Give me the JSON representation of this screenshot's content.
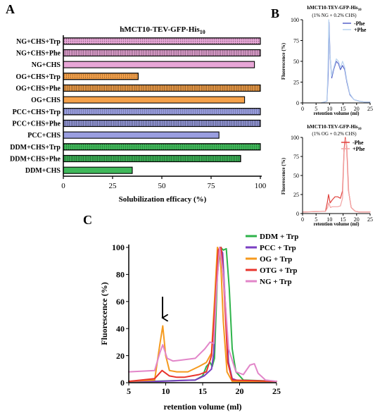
{
  "panels": {
    "A": {
      "label": "A",
      "chart_data": {
        "type": "bar",
        "orientation": "horizontal",
        "title": "hMCT10-TEV-GFP-His",
        "title_sub": "10",
        "xlabel": "Solubilization efficacy (%)",
        "ylabel": "",
        "xlim": [
          0,
          100
        ],
        "xticks": [
          "0",
          "25",
          "50",
          "75",
          "100"
        ],
        "grid": false,
        "categories": [
          "NG+CHS+Trp",
          "NG+CHS+Phe",
          "NG+CHS",
          "OG+CHS+Trp",
          "OG+CHS+Phe",
          "OG+CHS",
          "PCC+CHS+Trp",
          "PCC+CHS+Phe",
          "PCC+CHS",
          "DDM+CHS+Trp",
          "DDM+CHS+Phe",
          "DDM+CHS"
        ],
        "values": [
          100,
          100,
          97,
          38,
          100,
          92,
          100,
          100,
          79,
          100,
          90,
          35
        ],
        "colors": [
          "#e8a6d7",
          "#e8a6d7",
          "#e8a6d7",
          "#f5a14a",
          "#f5a14a",
          "#f5a14a",
          "#9a9ee0",
          "#9a9ee0",
          "#9a9ee0",
          "#3fb85a",
          "#3fb85a",
          "#3fb85a"
        ],
        "patterns": [
          "dots",
          "hatch",
          "solid",
          "dots",
          "hatch",
          "solid",
          "dots",
          "hatch",
          "solid",
          "dots",
          "hatch",
          "solid"
        ]
      }
    },
    "B": {
      "label": "B",
      "top": {
        "chart_data": {
          "type": "line",
          "title": "hMCT10-TEV-GFP-His",
          "title_sub": "10",
          "subtitle": "(1% NG + 0.2% CHS)",
          "xlabel": "retention volume (ml)",
          "ylabel": "Fluorescence (%)",
          "xlim": [
            0,
            25
          ],
          "ylim": [
            0,
            100
          ],
          "xticks": [
            "0",
            "5",
            "10",
            "15",
            "20",
            "25"
          ],
          "yticks": [
            "0",
            "25",
            "50",
            "75",
            "100"
          ],
          "legend_position": "top-right",
          "series": [
            {
              "name": "-Phe",
              "color": "#5560c8",
              "x": [
                7.0,
                9.0,
                9.5,
                9.8,
                10.2,
                10.8,
                11.5,
                12.5,
                13.3,
                14.0,
                14.8,
                15.6,
                16.4,
                17.5,
                19.0,
                21.0,
                23.0,
                25.0
              ],
              "y": [
                0,
                2,
                35,
                97,
                55,
                30,
                40,
                50,
                47,
                40,
                45,
                40,
                25,
                10,
                4,
                2,
                1,
                1
              ]
            },
            {
              "name": "+Phe",
              "color": "#b7d2ef",
              "x": [
                7.0,
                9.0,
                9.4,
                9.7,
                10.1,
                10.7,
                11.5,
                12.5,
                13.3,
                14.0,
                14.8,
                15.6,
                16.4,
                17.5,
                19.0,
                21.0,
                23.0,
                25.0
              ],
              "y": [
                0,
                2,
                40,
                100,
                60,
                32,
                42,
                53,
                50,
                42,
                50,
                43,
                27,
                11,
                4,
                2,
                1,
                1
              ]
            }
          ]
        }
      },
      "bottom": {
        "chart_data": {
          "type": "line",
          "title": "hMCT10-TEV-GFP-His",
          "title_sub": "10",
          "subtitle": "(1% OG + 0.2% CHS)",
          "xlabel": "retention volume (ml)",
          "ylabel": "Fluorescence (%)",
          "xlim": [
            0,
            25
          ],
          "ylim": [
            0,
            100
          ],
          "xticks": [
            "0",
            "5",
            "10",
            "15",
            "20",
            "25"
          ],
          "yticks": [
            "0",
            "25",
            "50",
            "75",
            "100"
          ],
          "legend_position": "top-right",
          "series": [
            {
              "name": "-Phe",
              "color": "#e0413c",
              "x": [
                0,
                8.5,
                9.2,
                9.6,
                10.2,
                11.0,
                12.0,
                13.0,
                14.0,
                14.8,
                15.4,
                15.8,
                16.3,
                17.0,
                18.0,
                19.5,
                21.0,
                25.0
              ],
              "y": [
                2,
                3,
                15,
                25,
                14,
                18,
                22,
                22,
                20,
                30,
                85,
                100,
                90,
                30,
                8,
                3,
                2,
                2
              ]
            },
            {
              "name": "+Phe",
              "color": "#f2a3a3",
              "x": [
                0,
                8.5,
                9.3,
                9.7,
                10.3,
                11.0,
                12.0,
                13.0,
                14.0,
                14.8,
                15.4,
                15.9,
                16.4,
                17.1,
                18.0,
                19.5,
                21.0,
                25.0
              ],
              "y": [
                2,
                3,
                8,
                14,
                8,
                9,
                9,
                9,
                10,
                20,
                80,
                98,
                88,
                28,
                8,
                3,
                2,
                2
              ]
            }
          ]
        }
      }
    },
    "C": {
      "label": "C",
      "chart_data": {
        "type": "line",
        "title": "",
        "xlabel": "retention volume (ml)",
        "ylabel": "Fluorescence (%)",
        "xlim": [
          5,
          25
        ],
        "ylim": [
          0,
          100
        ],
        "xticks": [
          "5",
          "10",
          "15",
          "20",
          "25"
        ],
        "yticks": [
          "0",
          "20",
          "40",
          "60",
          "80",
          "100"
        ],
        "legend_position": "top-right",
        "annotation": "arrow pointing down at ~9.5 ml",
        "series": [
          {
            "name": "DDM + Trp",
            "color": "#2db34a",
            "x": [
              5,
              8,
              14,
              15.0,
              15.5,
              16.0,
              16.3,
              16.6,
              17.0,
              17.4,
              17.8,
              18.2,
              18.6,
              19.0,
              19.5,
              20.5,
              25
            ],
            "y": [
              1,
              1,
              2,
              5,
              12,
              15,
              12,
              18,
              80,
              100,
              98,
              99,
              70,
              25,
              8,
              2,
              1
            ]
          },
          {
            "name": "PCC + Trp",
            "color": "#7a3fc2",
            "x": [
              5,
              9,
              14,
              15.2,
              15.8,
              16.2,
              16.5,
              16.9,
              17.3,
              17.7,
              18.1,
              18.5,
              19.0,
              20,
              25
            ],
            "y": [
              1,
              1,
              2,
              5,
              8,
              10,
              22,
              80,
              100,
              96,
              55,
              15,
              3,
              1,
              1
            ]
          },
          {
            "name": "OG + Trp",
            "color": "#f59a1e",
            "x": [
              5,
              8.5,
              9.2,
              9.6,
              10.0,
              10.5,
              11.5,
              13.0,
              14.5,
              15.5,
              16.2,
              16.6,
              17.0,
              17.4,
              17.8,
              18.3,
              19.0,
              25
            ],
            "y": [
              1,
              2,
              28,
              42,
              20,
              9,
              8,
              8,
              12,
              15,
              22,
              60,
              100,
              95,
              45,
              8,
              1,
              1
            ]
          },
          {
            "name": "OTG + Trp",
            "color": "#e8342c",
            "x": [
              5,
              8.5,
              9.5,
              10.5,
              11.5,
              12.5,
              13.5,
              14.5,
              15.5,
              16.2,
              16.7,
              17.1,
              17.5,
              17.9,
              18.4,
              19.0,
              25
            ],
            "y": [
              1,
              3,
              9,
              5,
              4,
              4,
              5,
              6,
              8,
              20,
              60,
              98,
              100,
              70,
              15,
              2,
              1
            ]
          },
          {
            "name": "NG + Trp",
            "color": "#e286c9",
            "x": [
              5,
              8.5,
              9.2,
              9.6,
              10.2,
              11.0,
              12.5,
              14.0,
              15.3,
              16.0,
              16.5,
              16.9,
              17.3,
              17.8,
              18.5,
              19.5,
              20.5,
              21.4,
              22.0,
              22.5,
              23.5,
              25
            ],
            "y": [
              8,
              9,
              22,
              28,
              18,
              16,
              17,
              18,
              25,
              30,
              29,
              70,
              100,
              80,
              25,
              8,
              6,
              13,
              14,
              7,
              2,
              1
            ]
          }
        ]
      }
    }
  }
}
